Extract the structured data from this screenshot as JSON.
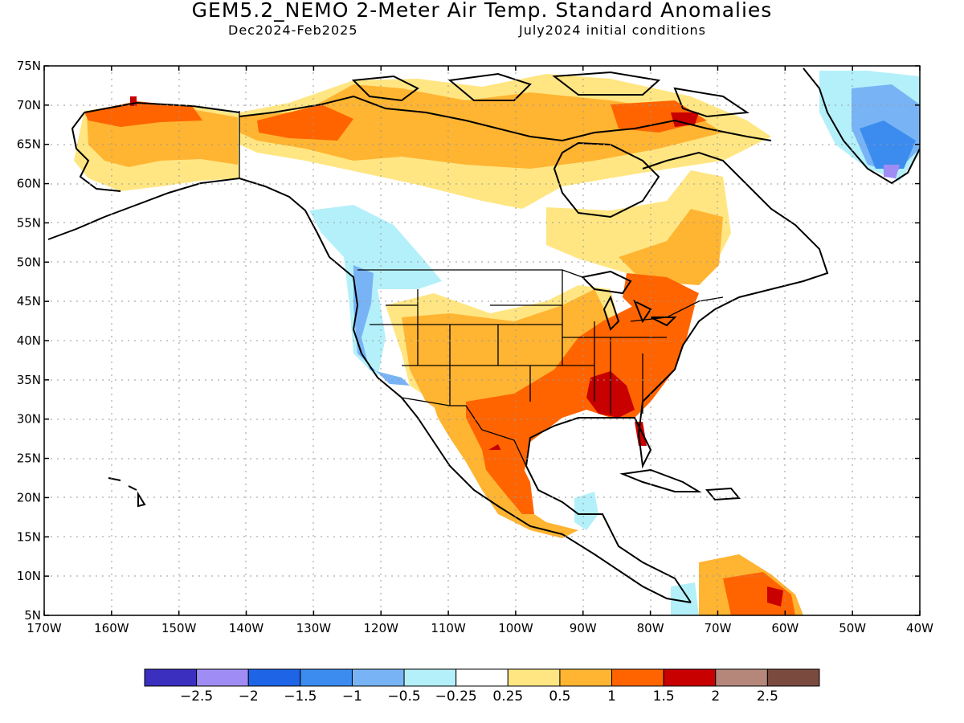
{
  "title": "GEM5.2_NEMO 2-Meter Air Temp. Standard Anomalies",
  "subtitle_left": "Dec2024-Feb2025",
  "subtitle_right": "July2024 initial conditions",
  "map": {
    "lon_range": [
      -170,
      -40
    ],
    "lat_range": [
      5,
      75
    ],
    "lat_ticks": [
      "75N",
      "70N",
      "65N",
      "60N",
      "55N",
      "50N",
      "45N",
      "40N",
      "35N",
      "30N",
      "25N",
      "20N",
      "15N",
      "10N",
      "5N"
    ],
    "lon_ticks": [
      "170W",
      "160W",
      "150W",
      "140W",
      "130W",
      "120W",
      "110W",
      "100W",
      "90W",
      "80W",
      "70W",
      "60W",
      "50W",
      "40W"
    ],
    "grid": true,
    "regions": [
      {
        "name": "alaska-warm",
        "level": "0.5 to 1",
        "lat": [
          58,
          72
        ],
        "lon": [
          -168,
          -141
        ]
      },
      {
        "name": "northern-canada-warm",
        "level": "0.5 to 1.5",
        "lat": [
          62,
          74
        ],
        "lon": [
          -140,
          -75
        ]
      },
      {
        "name": "hudson-bay-east-warm",
        "level": "0.25 to 1",
        "lat": [
          48,
          62
        ],
        "lon": [
          -95,
          -55
        ]
      },
      {
        "name": "pacific-northwest-cool",
        "level": "-0.5 to -1",
        "lat": [
          38,
          56
        ],
        "lon": [
          -135,
          -112
        ]
      },
      {
        "name": "greenland-cool",
        "level": "-0.5 to -2",
        "lat": [
          60,
          75
        ],
        "lon": [
          -55,
          -40
        ]
      },
      {
        "name": "southwest-us-warm",
        "level": "0.25 to 1",
        "lat": [
          31,
          45
        ],
        "lon": [
          -120,
          -95
        ]
      },
      {
        "name": "southeast-us-warm",
        "level": "1 to 2",
        "lat": [
          28,
          44
        ],
        "lon": [
          -100,
          -75
        ]
      },
      {
        "name": "mexico-warm",
        "level": "0.5 to 1.5",
        "lat": [
          16,
          31
        ],
        "lon": [
          -112,
          -95
        ]
      },
      {
        "name": "northern-south-america-warm",
        "level": "0.5 to 2",
        "lat": [
          5,
          10
        ],
        "lon": [
          -72,
          -58
        ]
      }
    ]
  },
  "colorbar": {
    "colors": [
      "#3a2fbe",
      "#a08cf5",
      "#1e64e6",
      "#3c8cf0",
      "#78b4f5",
      "#b4f0fa",
      "#ffffff",
      "#ffe682",
      "#ffb432",
      "#ff6400",
      "#c80000",
      "#b4877a",
      "#7a4a3e"
    ],
    "labels": [
      "-2.5",
      "-2",
      "-1.5",
      "-1",
      "-0.5",
      "-0.25",
      "0.25",
      "0.5",
      "1",
      "1.5",
      "2",
      "2.5"
    ]
  }
}
